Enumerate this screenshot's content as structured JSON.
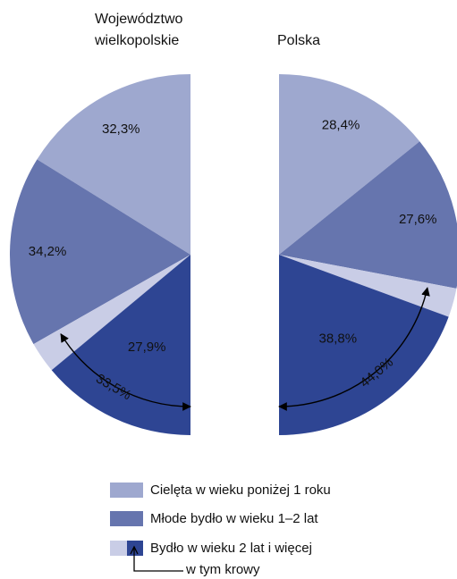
{
  "chart_data": [
    {
      "type": "pie",
      "title": "Województwo wielkopolskie",
      "categories": [
        "Cielęta w wieku poniżej 1 roku",
        "Młode bydło w wieku 1–2 lat",
        "Bydło w wieku 2 lat i więcej"
      ],
      "values": [
        32.3,
        34.2,
        33.5
      ],
      "value_labels": [
        "32,3%",
        "34,2%",
        "33,5%"
      ],
      "colors": [
        "#9ea8cf",
        "#6675ae",
        "#c9cde6"
      ],
      "subset": {
        "name": "w tym krowy",
        "value": 27.9,
        "value_label": "27,9%",
        "color": "#2e4593"
      }
    },
    {
      "type": "pie",
      "title": "Polska",
      "categories": [
        "Cielęta w wieku poniżej 1 roku",
        "Młode bydło w wieku 1–2 lat",
        "Bydło w wieku 2 lat i więcej"
      ],
      "values": [
        28.4,
        27.6,
        44.0
      ],
      "value_labels": [
        "28,4%",
        "27,6%",
        "44,0%"
      ],
      "colors": [
        "#9ea8cf",
        "#6675ae",
        "#c9cde6"
      ],
      "subset": {
        "name": "w tym krowy",
        "value": 38.8,
        "value_label": "38,8%",
        "color": "#2e4593"
      }
    }
  ]
}
